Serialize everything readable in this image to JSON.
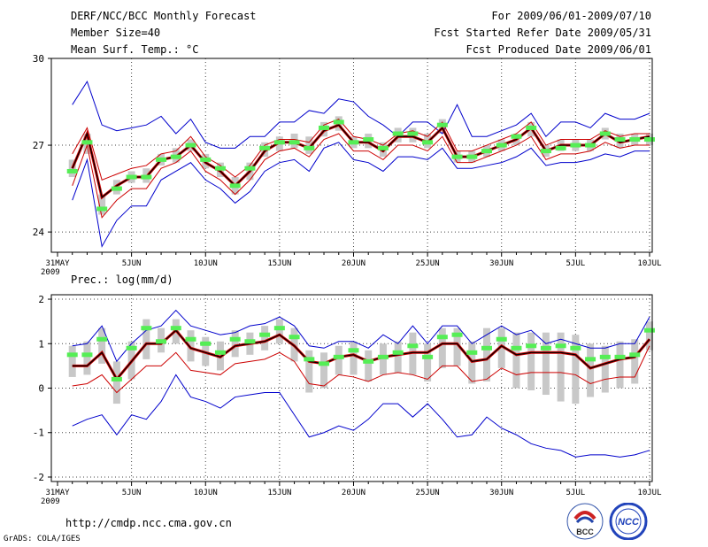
{
  "header": {
    "title": "DERF/NCC/BCC Monthly Forecast",
    "member_size": "Member Size=40",
    "variable": "Mean Surf. Temp.: °C",
    "period": "For 2009/06/01-2009/07/10",
    "fcst_started": "Fcst Started Refer Date 2009/05/31",
    "fcst_produced": "Fcst Produced Date 2009/06/01"
  },
  "footer": {
    "url": "http://cmdp.ncc.cma.gov.cn",
    "grads": "GrADS: COLA/IGES",
    "logo_bcc": "BCC",
    "logo_ncc": "NCC"
  },
  "colors": {
    "envelope": "#0000cc",
    "spread": "#cc0000",
    "mean": "#000000",
    "median": "#55ee55",
    "box": "#c8c8c8",
    "grid": "#444444"
  },
  "chart_data": [
    {
      "type": "line",
      "title": "Mean Surf. Temp.: °C",
      "x_labels": [
        "31MAY",
        "5JUN",
        "10JUN",
        "15JUN",
        "20JUN",
        "25JUN",
        "30JUN",
        "5JUL",
        "10JUL"
      ],
      "x_label_day_index": [
        0,
        5,
        10,
        15,
        20,
        25,
        30,
        35,
        40
      ],
      "x_sub_label": "2009",
      "ylim": [
        23.3,
        30
      ],
      "y_ticks": [
        24,
        27,
        30
      ],
      "grid": true,
      "days": [
        1,
        2,
        3,
        4,
        5,
        6,
        7,
        8,
        9,
        10,
        11,
        12,
        13,
        14,
        15,
        16,
        17,
        18,
        19,
        20,
        21,
        22,
        23,
        24,
        25,
        26,
        27,
        28,
        29,
        30,
        31,
        32,
        33,
        34,
        35,
        36,
        37,
        38,
        39,
        40
      ],
      "series": [
        {
          "name": "max",
          "values": [
            28.4,
            29.2,
            27.7,
            27.5,
            27.6,
            27.7,
            28.0,
            27.4,
            27.9,
            27.1,
            26.9,
            26.9,
            27.3,
            27.3,
            27.8,
            27.8,
            28.2,
            28.1,
            28.6,
            28.5,
            28.0,
            27.7,
            27.3,
            27.8,
            27.8,
            27.4,
            28.4,
            27.3,
            27.3,
            27.5,
            27.7,
            28.1,
            27.3,
            27.8,
            27.8,
            27.6,
            28.1,
            27.9,
            27.9,
            28.1
          ]
        },
        {
          "name": "p90",
          "values": [
            26.7,
            27.6,
            25.8,
            26.0,
            26.2,
            26.3,
            26.7,
            26.8,
            27.3,
            26.6,
            26.3,
            25.9,
            26.3,
            27.0,
            27.2,
            27.2,
            27.1,
            27.7,
            27.9,
            27.3,
            27.2,
            27.0,
            27.4,
            27.5,
            27.3,
            27.8,
            26.8,
            26.8,
            27.0,
            27.2,
            27.4,
            27.8,
            27.0,
            27.2,
            27.2,
            27.2,
            27.5,
            27.3,
            27.4,
            27.4
          ]
        },
        {
          "name": "mean",
          "values": [
            26.2,
            27.4,
            25.2,
            25.6,
            25.9,
            25.9,
            26.5,
            26.6,
            27.0,
            26.4,
            26.1,
            25.6,
            26.1,
            26.8,
            27.1,
            27.1,
            26.9,
            27.5,
            27.7,
            27.1,
            27.1,
            26.8,
            27.3,
            27.3,
            27.1,
            27.6,
            26.6,
            26.6,
            26.8,
            27.0,
            27.2,
            27.6,
            26.8,
            27.0,
            27.0,
            27.0,
            27.4,
            27.1,
            27.2,
            27.3
          ]
        },
        {
          "name": "p10",
          "values": [
            25.6,
            27.0,
            24.5,
            25.1,
            25.5,
            25.5,
            26.2,
            26.4,
            26.8,
            26.1,
            25.8,
            25.3,
            25.8,
            26.5,
            26.8,
            26.9,
            26.6,
            27.2,
            27.4,
            26.8,
            26.8,
            26.5,
            27.0,
            27.0,
            26.8,
            27.3,
            26.4,
            26.4,
            26.6,
            26.8,
            27.0,
            27.3,
            26.5,
            26.7,
            26.7,
            26.8,
            27.1,
            26.9,
            27.0,
            27.0
          ]
        },
        {
          "name": "min",
          "values": [
            25.1,
            26.5,
            23.5,
            24.4,
            24.9,
            24.9,
            25.8,
            26.1,
            26.4,
            25.8,
            25.5,
            25.0,
            25.4,
            26.1,
            26.4,
            26.5,
            26.1,
            26.9,
            27.1,
            26.5,
            26.4,
            26.1,
            26.6,
            26.6,
            26.5,
            26.9,
            26.2,
            26.2,
            26.3,
            26.4,
            26.6,
            26.9,
            26.3,
            26.4,
            26.4,
            26.5,
            26.7,
            26.6,
            26.8,
            26.8
          ]
        },
        {
          "name": "median",
          "values": [
            26.1,
            27.1,
            24.8,
            25.5,
            25.9,
            25.9,
            26.5,
            26.6,
            27.0,
            26.5,
            26.2,
            25.6,
            26.2,
            26.9,
            27.1,
            27.1,
            26.9,
            27.6,
            27.8,
            27.1,
            27.2,
            26.9,
            27.4,
            27.4,
            27.1,
            27.7,
            26.6,
            26.6,
            26.8,
            27.0,
            27.3,
            27.6,
            26.8,
            26.9,
            27.0,
            27.0,
            27.4,
            27.2,
            27.2,
            27.2
          ]
        },
        {
          "name": "box_low",
          "values": [
            25.9,
            26.7,
            24.6,
            25.3,
            25.7,
            25.7,
            26.3,
            26.4,
            26.8,
            26.2,
            25.9,
            25.3,
            25.8,
            26.6,
            26.8,
            26.9,
            26.7,
            27.3,
            27.5,
            26.9,
            26.9,
            26.6,
            27.1,
            27.1,
            26.9,
            27.4,
            26.4,
            26.4,
            26.6,
            26.8,
            27.0,
            27.3,
            26.6,
            26.8,
            26.8,
            26.8,
            27.2,
            26.9,
            27.0,
            27.0
          ]
        },
        {
          "name": "box_high",
          "values": [
            26.5,
            27.4,
            25.3,
            25.8,
            26.1,
            26.2,
            26.7,
            26.9,
            27.2,
            26.7,
            26.4,
            25.9,
            26.4,
            27.1,
            27.3,
            27.4,
            27.3,
            27.8,
            28.0,
            27.3,
            27.4,
            27.1,
            27.6,
            27.6,
            27.4,
            27.9,
            26.8,
            26.8,
            27.0,
            27.2,
            27.4,
            27.8,
            27.0,
            27.2,
            27.2,
            27.2,
            27.6,
            27.4,
            27.4,
            27.4
          ]
        }
      ]
    },
    {
      "type": "line",
      "title": "Prec.: log(mm/d)",
      "x_labels": [
        "31MAY",
        "5JUN",
        "10JUN",
        "15JUN",
        "20JUN",
        "25JUN",
        "30JUN",
        "5JUL",
        "10JUL"
      ],
      "x_label_day_index": [
        0,
        5,
        10,
        15,
        20,
        25,
        30,
        35,
        40
      ],
      "x_sub_label": "2009",
      "ylim": [
        -2.1,
        2.1
      ],
      "y_ticks": [
        -2,
        -1,
        0,
        1,
        2
      ],
      "grid": true,
      "days": [
        1,
        2,
        3,
        4,
        5,
        6,
        7,
        8,
        9,
        10,
        11,
        12,
        13,
        14,
        15,
        16,
        17,
        18,
        19,
        20,
        21,
        22,
        23,
        24,
        25,
        26,
        27,
        28,
        29,
        30,
        31,
        32,
        33,
        34,
        35,
        36,
        37,
        38,
        39,
        40
      ],
      "series": [
        {
          "name": "max",
          "values": [
            0.95,
            1.0,
            1.4,
            0.6,
            1.0,
            1.3,
            1.4,
            1.75,
            1.4,
            1.3,
            1.2,
            1.25,
            1.4,
            1.45,
            1.6,
            1.4,
            0.95,
            0.9,
            1.05,
            1.05,
            0.9,
            1.2,
            1.0,
            1.4,
            1.0,
            1.4,
            1.4,
            1.0,
            1.2,
            1.4,
            1.2,
            1.3,
            1.0,
            1.1,
            1.0,
            0.9,
            0.9,
            1.0,
            1.0,
            1.6
          ]
        },
        {
          "name": "mean",
          "values": [
            0.5,
            0.5,
            0.8,
            0.2,
            0.6,
            1.0,
            1.0,
            1.3,
            0.9,
            0.8,
            0.7,
            0.95,
            1.0,
            1.05,
            1.2,
            0.95,
            0.6,
            0.55,
            0.7,
            0.75,
            0.6,
            0.7,
            0.75,
            0.8,
            0.8,
            1.0,
            1.0,
            0.6,
            0.65,
            0.95,
            0.75,
            0.8,
            0.8,
            0.8,
            0.75,
            0.45,
            0.55,
            0.65,
            0.7,
            1.1
          ]
        },
        {
          "name": "p10",
          "values": [
            0.05,
            0.1,
            0.3,
            -0.1,
            0.2,
            0.5,
            0.5,
            0.8,
            0.4,
            0.35,
            0.3,
            0.55,
            0.6,
            0.65,
            0.8,
            0.6,
            0.1,
            0.05,
            0.3,
            0.25,
            0.15,
            0.3,
            0.35,
            0.3,
            0.2,
            0.5,
            0.5,
            0.15,
            0.2,
            0.45,
            0.3,
            0.35,
            0.35,
            0.35,
            0.3,
            0.1,
            0.2,
            0.25,
            0.25,
            0.95
          ]
        },
        {
          "name": "min",
          "values": [
            -0.85,
            -0.7,
            -0.6,
            -1.05,
            -0.6,
            -0.7,
            -0.3,
            0.3,
            -0.2,
            -0.3,
            -0.45,
            -0.2,
            -0.15,
            -0.1,
            -0.1,
            -0.6,
            -1.1,
            -1.0,
            -0.85,
            -0.95,
            -0.7,
            -0.35,
            -0.35,
            -0.65,
            -0.35,
            -0.7,
            -1.1,
            -1.05,
            -0.65,
            -0.9,
            -1.05,
            -1.25,
            -1.35,
            -1.4,
            -1.55,
            -1.5,
            -1.5,
            -1.55,
            -1.5,
            -1.4
          ]
        },
        {
          "name": "median",
          "values": [
            0.75,
            0.75,
            1.1,
            0.2,
            0.9,
            1.35,
            1.05,
            1.35,
            1.1,
            1.0,
            0.8,
            1.1,
            1.05,
            1.2,
            1.35,
            1.15,
            0.65,
            0.55,
            0.7,
            0.85,
            0.6,
            0.7,
            0.8,
            0.95,
            0.7,
            1.15,
            1.2,
            0.8,
            0.9,
            1.1,
            0.9,
            0.95,
            0.9,
            0.95,
            0.9,
            0.65,
            0.7,
            0.7,
            0.75,
            1.3
          ]
        },
        {
          "name": "box_low",
          "values": [
            0.25,
            0.3,
            0.55,
            -0.35,
            0.2,
            0.65,
            0.8,
            1.0,
            0.6,
            0.5,
            0.4,
            0.7,
            0.75,
            0.85,
            1.0,
            0.6,
            -0.1,
            0.0,
            0.3,
            0.3,
            0.15,
            0.3,
            0.35,
            0.3,
            0.15,
            0.45,
            0.5,
            0.1,
            0.15,
            0.45,
            0.0,
            -0.05,
            -0.15,
            -0.3,
            -0.35,
            -0.2,
            -0.1,
            0.0,
            0.1,
            0.85
          ]
        },
        {
          "name": "box_high",
          "values": [
            0.95,
            1.05,
            1.35,
            0.6,
            1.05,
            1.55,
            1.35,
            1.55,
            1.3,
            1.15,
            1.05,
            1.3,
            1.25,
            1.4,
            1.55,
            1.35,
            0.85,
            0.8,
            0.95,
            1.05,
            0.85,
            1.0,
            1.05,
            1.25,
            1.0,
            1.35,
            1.35,
            1.05,
            1.35,
            1.35,
            1.25,
            1.25,
            1.25,
            1.25,
            1.2,
            1.0,
            0.95,
            1.05,
            1.1,
            1.5
          ]
        }
      ]
    }
  ]
}
